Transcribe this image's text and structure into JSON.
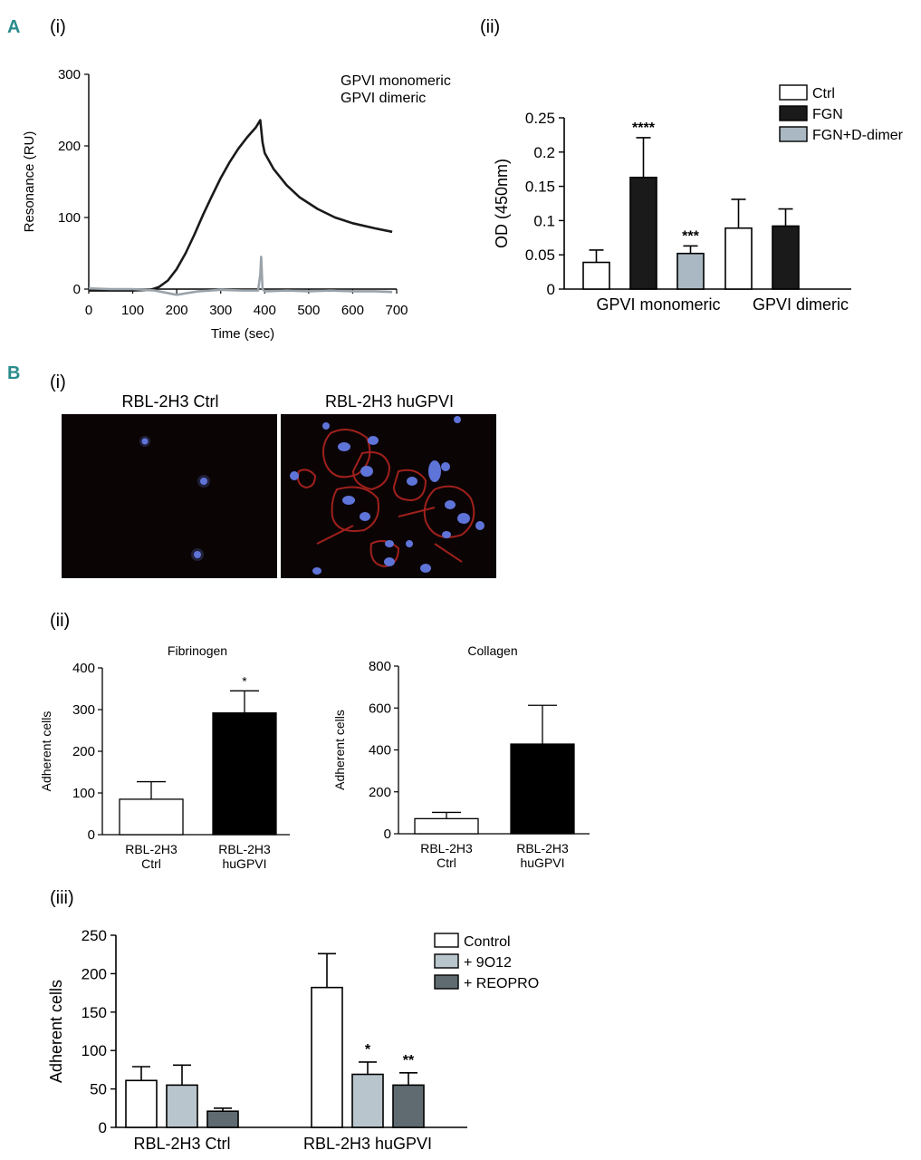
{
  "panels": {
    "A": "A",
    "A_i": "(i)",
    "A_ii": "(ii)",
    "B": "B",
    "B_i": "(i)",
    "B_ii": "(ii)",
    "B_iii": "(iii)"
  },
  "micrographs": {
    "left_label": "RBL-2H3 Ctrl",
    "right_label": "RBL-2H3 huGPVI"
  },
  "chart_data": [
    {
      "id": "A_i",
      "type": "line",
      "xlabel": "Time (sec)",
      "ylabel": "Resonance (RU)",
      "xlim": [
        0,
        700
      ],
      "ylim": [
        0,
        300
      ],
      "xticks": [
        0,
        100,
        200,
        300,
        400,
        500,
        600,
        700
      ],
      "yticks": [
        0,
        100,
        200,
        300
      ],
      "legend_position": "top-right",
      "series": [
        {
          "name": "GPVI monomeric",
          "color": "#1a1a1a",
          "x": [
            0,
            50,
            100,
            140,
            160,
            180,
            200,
            220,
            240,
            260,
            280,
            300,
            320,
            340,
            360,
            380,
            390,
            395,
            400,
            420,
            450,
            480,
            520,
            560,
            600,
            650,
            690
          ],
          "y": [
            -2,
            -2,
            -2,
            -1,
            3,
            12,
            28,
            50,
            76,
            104,
            130,
            155,
            177,
            196,
            212,
            226,
            236,
            205,
            190,
            168,
            145,
            128,
            112,
            100,
            92,
            85,
            80
          ]
        },
        {
          "name": "GPVI dimeric",
          "color": "#9aa3aa",
          "x": [
            0,
            50,
            100,
            150,
            200,
            250,
            300,
            350,
            385,
            390,
            392,
            395,
            400,
            450,
            500,
            550,
            600,
            650,
            690
          ],
          "y": [
            1,
            0,
            0,
            -2,
            -8,
            -3,
            -1,
            -2,
            -2,
            20,
            45,
            0,
            -3,
            -2,
            -3,
            -2,
            -3,
            -3,
            -4
          ]
        }
      ]
    },
    {
      "id": "A_ii",
      "type": "bar",
      "ylabel": "OD (450nm)",
      "ylim": [
        0,
        0.25
      ],
      "yticks": [
        0,
        0.05,
        0.1,
        0.15,
        0.2,
        0.25
      ],
      "categories": [
        "GPVI monomeric",
        "GPVI dimeric"
      ],
      "legend_position": "top-right",
      "series": [
        {
          "name": "Ctrl",
          "color": "#ffffff",
          "values": [
            0.039,
            0.089
          ],
          "errors": [
            0.018,
            0.042
          ],
          "sig": [
            "",
            ""
          ]
        },
        {
          "name": "FGN",
          "color": "#1a1a1a",
          "values": [
            0.163,
            0.092
          ],
          "errors": [
            0.058,
            0.025
          ],
          "sig": [
            "****",
            ""
          ]
        },
        {
          "name": "FGN+D-dimer",
          "color": "#a9b8c2",
          "values": [
            0.052,
            null
          ],
          "errors": [
            0.011,
            null
          ],
          "sig": [
            "***",
            ""
          ]
        }
      ]
    },
    {
      "id": "B_ii_fibrinogen",
      "type": "bar",
      "title": "Fibrinogen",
      "ylabel": "Adherent cells",
      "ylim": [
        0,
        400
      ],
      "yticks": [
        0,
        100,
        200,
        300,
        400
      ],
      "categories": [
        "RBL-2H3 Ctrl",
        "RBL-2H3 huGPVI"
      ],
      "values": [
        85,
        292
      ],
      "errors": [
        42,
        53
      ],
      "colors": [
        "#ffffff",
        "#000000"
      ],
      "sig": [
        "",
        "*"
      ]
    },
    {
      "id": "B_ii_collagen",
      "type": "bar",
      "title": "Collagen",
      "ylabel": "Adherent cells",
      "ylim": [
        0,
        800
      ],
      "yticks": [
        0,
        200,
        400,
        600,
        800
      ],
      "categories": [
        "RBL-2H3 Ctrl",
        "RBL-2H3 huGPVI"
      ],
      "values": [
        72,
        428
      ],
      "errors": [
        30,
        185
      ],
      "colors": [
        "#ffffff",
        "#000000"
      ],
      "sig": [
        "",
        ""
      ]
    },
    {
      "id": "B_iii",
      "type": "bar",
      "ylabel": "Adherent cells",
      "ylim": [
        0,
        250
      ],
      "yticks": [
        0,
        50,
        100,
        150,
        200,
        250
      ],
      "categories": [
        "RBL-2H3 Ctrl",
        "RBL-2H3 huGPVI"
      ],
      "legend_position": "top-right",
      "series": [
        {
          "name": "Control",
          "color": "#ffffff",
          "values": [
            61,
            182
          ],
          "errors": [
            18,
            44
          ],
          "sig": [
            "",
            ""
          ]
        },
        {
          "name": "+ 9O12",
          "color": "#b8c5cc",
          "values": [
            55,
            69
          ],
          "errors": [
            26,
            16
          ],
          "sig": [
            "",
            "*"
          ]
        },
        {
          "name": "+ REOPRO",
          "color": "#5f6b71",
          "values": [
            21,
            55
          ],
          "errors": [
            4,
            16
          ],
          "sig": [
            "",
            "**"
          ]
        }
      ]
    }
  ]
}
